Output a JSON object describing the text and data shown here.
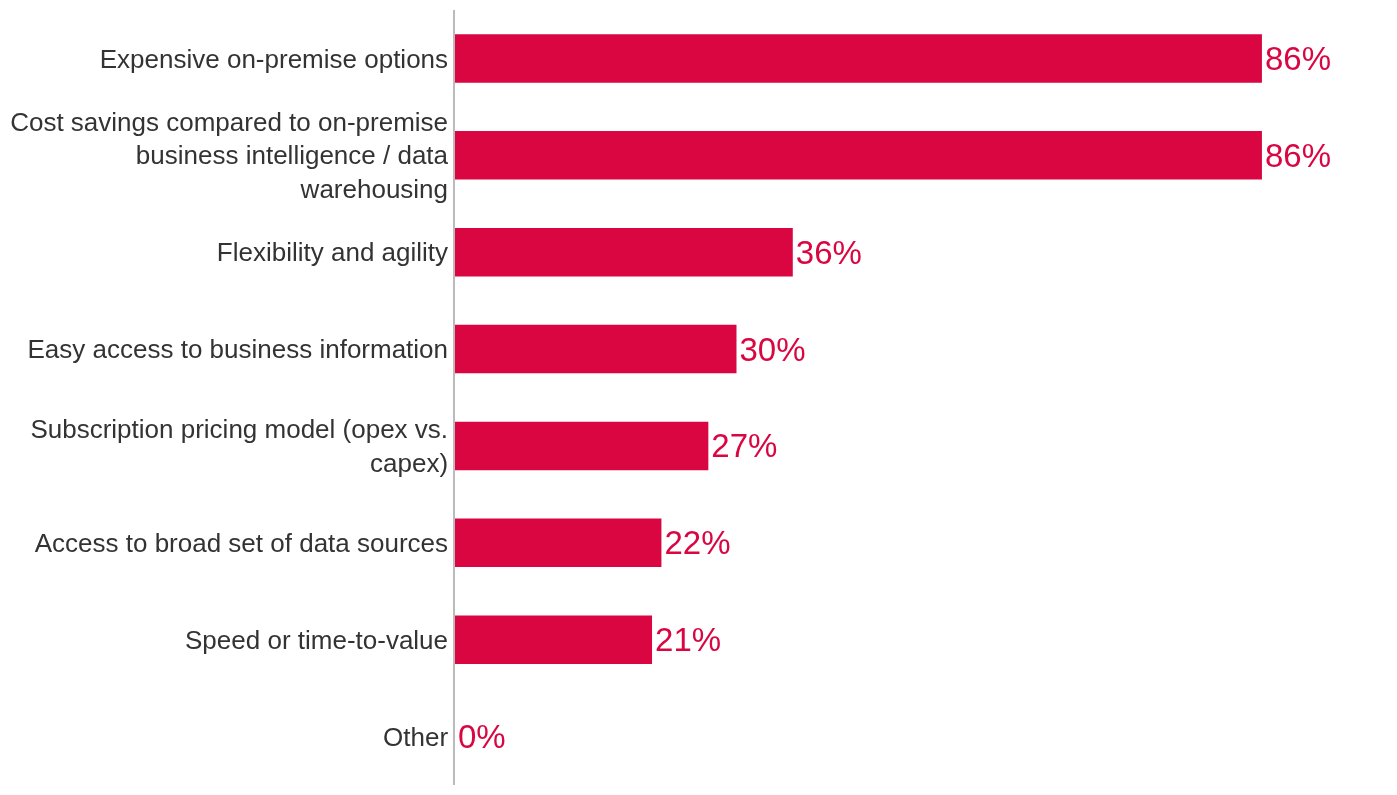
{
  "chart_data": {
    "type": "bar",
    "orientation": "horizontal",
    "value_labels": [
      "86%",
      "86%",
      "36%",
      "30%",
      "27%",
      "22%",
      "21%",
      "0%"
    ],
    "color": "#d90642",
    "categories": [
      "Expensive on-premise options",
      "Cost savings compared to on-premise business intelligence / data warehousing",
      "Flexibility and agility",
      "Easy access to business information",
      "Subscription pricing model (opex vs. capex)",
      "Access to broad set of data sources",
      "Speed or time-to-value",
      "Other"
    ],
    "values": [
      86,
      86,
      36,
      30,
      27,
      22,
      21,
      0
    ]
  }
}
